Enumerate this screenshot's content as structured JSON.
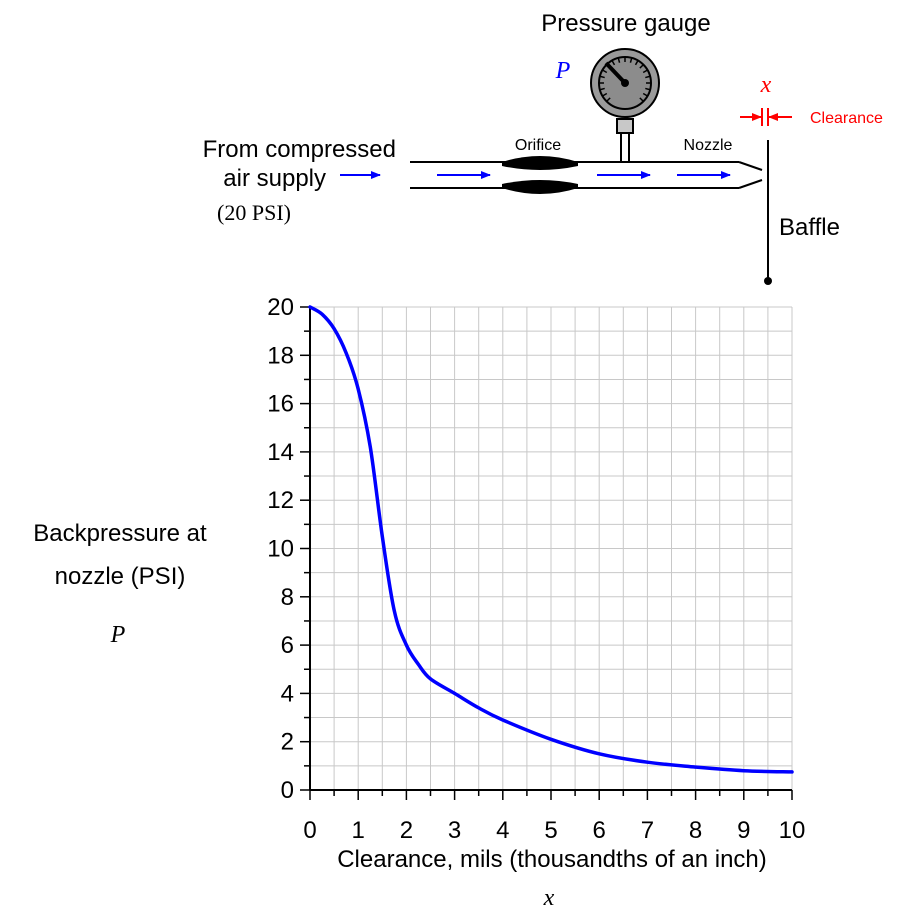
{
  "diagram": {
    "gauge_label": "Pressure gauge",
    "gauge_symbol": "P",
    "clearance_symbol": "x",
    "clearance_label": "Clearance",
    "supply_line1": "From compressed",
    "supply_line2": "air supply",
    "supply_pressure": "(20 PSI)",
    "orifice_label": "Orifice",
    "nozzle_label": "Nozzle",
    "baffle_label": "Baffle"
  },
  "colors": {
    "flow_arrow": "#0000ff",
    "clearance_marker": "#ff0000",
    "curve": "#0000ff",
    "grid": "#c8c8c8"
  },
  "chart_data": {
    "type": "line",
    "xlabel": "Clearance, mils (thousandths of an inch)",
    "xsymbol": "x",
    "ylabel_line1": "Backpressure at",
    "ylabel_line2": "nozzle (PSI)",
    "ysymbol": "P",
    "xlim": [
      0,
      10
    ],
    "ylim": [
      0,
      20
    ],
    "x_ticks": [
      "0",
      "1",
      "2",
      "3",
      "4",
      "5",
      "6",
      "7",
      "8",
      "9",
      "10"
    ],
    "y_ticks": [
      "0",
      "2",
      "4",
      "6",
      "8",
      "10",
      "12",
      "14",
      "16",
      "18",
      "20"
    ],
    "grid": true,
    "series": [
      {
        "x": [
          0,
          0.25,
          0.5,
          0.75,
          1.0,
          1.25,
          1.5,
          1.75,
          2.0,
          2.25,
          2.5,
          3.0,
          3.5,
          4.0,
          5.0,
          6.0,
          7.0,
          8.0,
          9.0,
          10.0
        ],
        "y": [
          20,
          19.7,
          19.1,
          18.1,
          16.6,
          14.2,
          10.5,
          7.4,
          6.0,
          5.2,
          4.6,
          4.0,
          3.4,
          2.9,
          2.1,
          1.5,
          1.15,
          0.95,
          0.8,
          0.75
        ]
      }
    ]
  }
}
